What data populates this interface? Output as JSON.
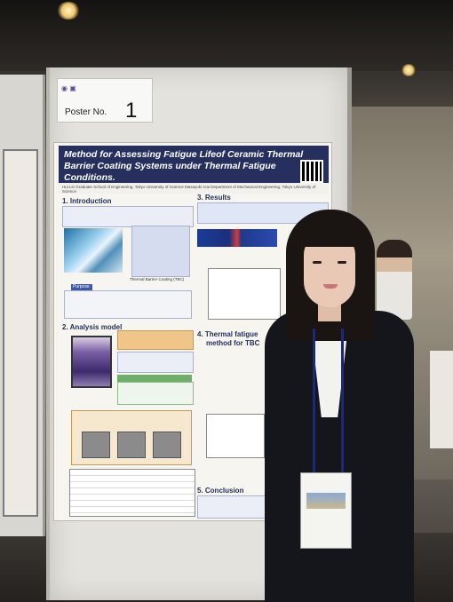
{
  "poster_label": {
    "text": "Poster No.",
    "number": "1"
  },
  "poster": {
    "title": "Method for Assessing Fatigue Lifeof Ceramic Thermal Barrier Coating Systems under Thermal Fatigue Conditions.",
    "authors": "Hui Lin  Graduate School of Engineering, Tokyo University of Science   Masayuki Arai  Department of Mechanical Engineering, Tokyo University of Science",
    "sections": {
      "introduction": "1. Introduction",
      "analysis_model": "2. Analysis model",
      "results": "3. Results",
      "thermal_fatigue": "4. Thermal fatigue",
      "method_for_tbc": "method for TBC",
      "conclusion": "5. Conclusion"
    },
    "labels": {
      "purpose": "Purpose",
      "tbc": "Thermal Barrier Coating (TBC)"
    }
  }
}
